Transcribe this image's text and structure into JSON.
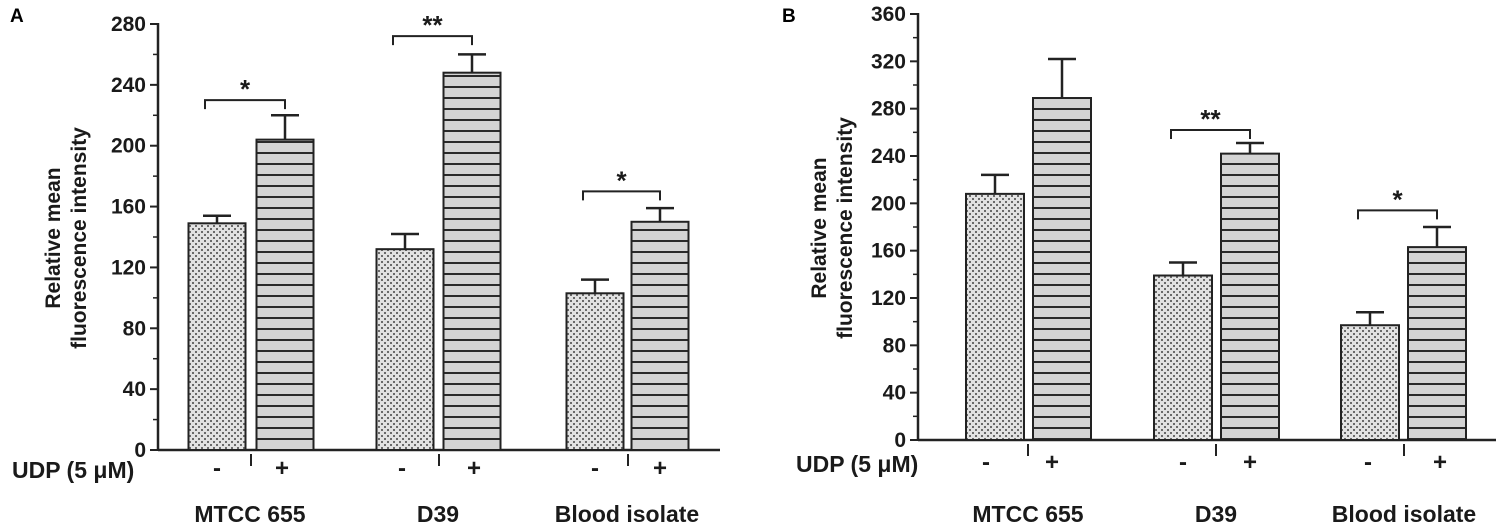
{
  "chart_data": [
    {
      "panel": "A",
      "type": "bar",
      "ylabel": "Relative mean fluorescence intensity",
      "ylim": [
        0,
        280
      ],
      "yticks": [
        "0",
        "40",
        "80",
        "120",
        "160",
        "200",
        "240",
        "280"
      ],
      "condition_label": "UDP (5 μM)",
      "condition_levels": [
        "-",
        "+"
      ],
      "categories": [
        "MTCC 655",
        "D39",
        "Blood isolate"
      ],
      "series": [
        {
          "name": "-",
          "values": [
            149,
            132,
            103
          ],
          "errors": [
            5,
            10,
            9
          ]
        },
        {
          "name": "+",
          "values": [
            204,
            248,
            150
          ],
          "errors": [
            16,
            12,
            9
          ]
        }
      ],
      "significance": [
        {
          "category": "MTCC 655",
          "label": "*",
          "bracket_y": 230
        },
        {
          "category": "D39",
          "label": "**",
          "bracket_y": 272
        },
        {
          "category": "Blood isolate",
          "label": "*",
          "bracket_y": 170
        }
      ]
    },
    {
      "panel": "B",
      "type": "bar",
      "ylabel": "Relative mean fluorescence intensity",
      "ylim": [
        0,
        360
      ],
      "yticks": [
        "0",
        "40",
        "80",
        "120",
        "160",
        "200",
        "240",
        "280",
        "320",
        "360"
      ],
      "condition_label": "UDP (5 μM)",
      "condition_levels": [
        "-",
        "+"
      ],
      "categories": [
        "MTCC 655",
        "D39",
        "Blood isolate"
      ],
      "series": [
        {
          "name": "-",
          "values": [
            208,
            139,
            97
          ],
          "errors": [
            16,
            11,
            11
          ]
        },
        {
          "name": "+",
          "values": [
            289,
            242,
            163
          ],
          "errors": [
            33,
            9,
            17
          ]
        }
      ],
      "significance": [
        {
          "category": "D39",
          "label": "**",
          "bracket_y": 262
        },
        {
          "category": "Blood isolate",
          "label": "*",
          "bracket_y": 194
        }
      ]
    }
  ]
}
